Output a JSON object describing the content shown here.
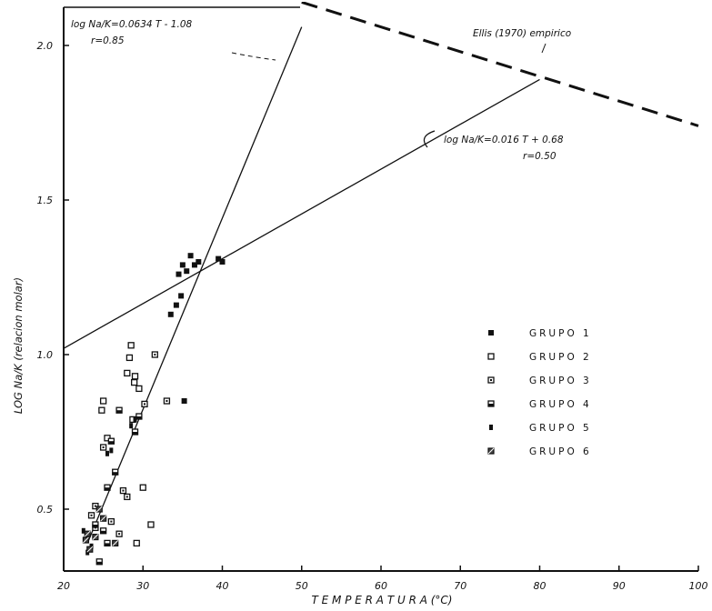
{
  "chart_data": {
    "type": "scatter",
    "xlabel": "T E M P E R A T U R A (°C)",
    "ylabel": "LOG Na/K (relacion molar)",
    "xlim": [
      20,
      100
    ],
    "ylim": [
      0.3,
      2.1
    ],
    "x_ticks": [
      20,
      30,
      40,
      50,
      60,
      70,
      80,
      90,
      100
    ],
    "y_ticks": [
      0.5,
      1.0,
      1.5,
      2.0
    ],
    "x_tick_labels": [
      "20",
      "30",
      "40",
      "50",
      "60",
      "70",
      "80",
      "90",
      "100"
    ],
    "y_tick_labels": [
      "0.5",
      "1.0",
      "1.5",
      "2.0"
    ],
    "grid": false,
    "legend_position": "right",
    "lines": [
      {
        "name": "fit-steep",
        "style": "solid",
        "x": [
          23,
          50
        ],
        "y": [
          0.39,
          2.06
        ]
      },
      {
        "name": "fit-shallow",
        "style": "solid",
        "x": [
          20,
          80
        ],
        "y": [
          1.02,
          1.89
        ]
      },
      {
        "name": "ellis-1970",
        "style": "dashed",
        "x": [
          50,
          100
        ],
        "y": [
          2.14,
          1.74
        ]
      }
    ],
    "annotations": [
      {
        "key": "eq1",
        "lines": [
          "log Na/K=0.0634 T - 1.08",
          "r=0.85"
        ]
      },
      {
        "key": "eq2",
        "lines": [
          "log Na/K=0.016 T + 0.68",
          "r=0.50"
        ]
      },
      {
        "key": "ellis",
        "lines": [
          "Ellis (1970) empirico"
        ]
      }
    ],
    "series": [
      {
        "name": "GRUPO 1",
        "marker": "square-filled",
        "x": [
          34.5,
          35.0,
          35.5,
          36.0,
          36.5,
          34.8,
          37.0,
          39.5,
          40.0,
          33.5,
          34.2,
          35.2
        ],
        "y": [
          1.26,
          1.29,
          1.27,
          1.32,
          1.29,
          1.19,
          1.3,
          1.31,
          1.3,
          1.13,
          1.16,
          0.85
        ]
      },
      {
        "name": "GRUPO 2",
        "marker": "square-open",
        "x": [
          28.5,
          28.3,
          28.0,
          29.0,
          29.5,
          28.7,
          30.0,
          31.0,
          29.2,
          28.9,
          25.0,
          24.8,
          25.5
        ],
        "y": [
          1.03,
          0.99,
          0.94,
          0.93,
          0.89,
          0.79,
          0.57,
          0.45,
          0.39,
          0.91,
          0.85,
          0.82,
          0.73
        ]
      },
      {
        "name": "GRUPO 3",
        "marker": "square-dot",
        "x": [
          31.5,
          30.2,
          33.0,
          25.0,
          24.0,
          26.0,
          27.0,
          27.5,
          28.0,
          23.5,
          24.0
        ],
        "y": [
          1.0,
          0.84,
          0.85,
          0.7,
          0.51,
          0.46,
          0.42,
          0.56,
          0.54,
          0.48,
          0.44
        ]
      },
      {
        "name": "GRUPO 4",
        "marker": "square-half",
        "x": [
          27.0,
          26.0,
          26.5,
          25.5,
          24.0,
          25.0,
          25.5,
          29.5,
          29.0,
          24.5
        ],
        "y": [
          0.82,
          0.72,
          0.62,
          0.57,
          0.45,
          0.43,
          0.39,
          0.8,
          0.75,
          0.33
        ]
      },
      {
        "name": "GRUPO 5",
        "marker": "bar-small",
        "x": [
          29.0,
          28.5,
          25.5,
          26.0,
          23.0,
          23.5,
          22.5,
          23.0
        ],
        "y": [
          0.79,
          0.77,
          0.68,
          0.69,
          0.41,
          0.38,
          0.43,
          0.36
        ]
      },
      {
        "name": "GRUPO 6",
        "marker": "square-slash",
        "x": [
          23.0,
          22.8,
          23.3,
          24.5,
          25.0,
          24.0,
          26.5
        ],
        "y": [
          0.42,
          0.4,
          0.37,
          0.5,
          0.47,
          0.41,
          0.39
        ]
      }
    ]
  }
}
